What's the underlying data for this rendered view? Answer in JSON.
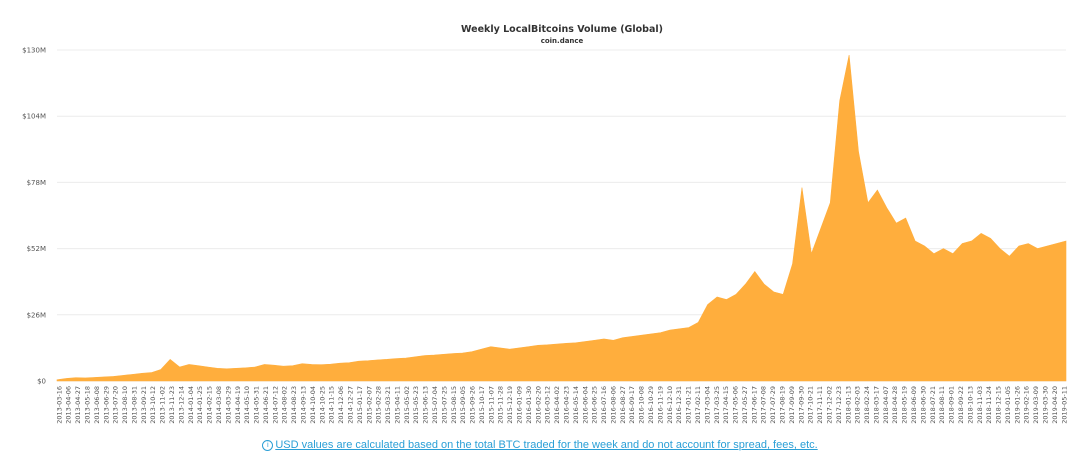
{
  "chart_data": {
    "type": "area",
    "title": "Weekly LocalBitcoins Volume (Global)",
    "subtitle": "coin.dance",
    "xlabel": "",
    "ylabel": "",
    "color": "#ffae3d",
    "ylim": [
      0,
      130000000
    ],
    "ytick_labels": [
      "$0",
      "$26M",
      "$52M",
      "$78M",
      "$104M",
      "$130M"
    ],
    "grid": true,
    "x_tick_labels": [
      "2013-03-16",
      "2013-04-06",
      "2013-04-27",
      "2013-05-18",
      "2013-06-08",
      "2013-06-29",
      "2013-07-20",
      "2013-08-10",
      "2013-08-31",
      "2013-09-21",
      "2013-10-12",
      "2013-11-02",
      "2013-11-23",
      "2013-12-14",
      "2014-01-04",
      "2014-01-25",
      "2014-02-15",
      "2014-03-08",
      "2014-03-29",
      "2014-04-19",
      "2014-05-10",
      "2014-05-31",
      "2014-06-21",
      "2014-07-12",
      "2014-08-02",
      "2014-08-23",
      "2014-09-13",
      "2014-10-04",
      "2014-10-25",
      "2014-11-15",
      "2014-12-06",
      "2014-12-27",
      "2015-01-17",
      "2015-02-07",
      "2015-02-28",
      "2015-03-21",
      "2015-04-11",
      "2015-05-02",
      "2015-05-23",
      "2015-06-13",
      "2015-07-04",
      "2015-07-25",
      "2015-08-15",
      "2015-09-05",
      "2015-09-26",
      "2015-10-17",
      "2015-11-07",
      "2015-11-28",
      "2015-12-19",
      "2016-01-09",
      "2016-01-30",
      "2016-02-20",
      "2016-03-12",
      "2016-04-02",
      "2016-04-23",
      "2016-05-14",
      "2016-06-04",
      "2016-06-25",
      "2016-07-16",
      "2016-08-06",
      "2016-08-27",
      "2016-09-17",
      "2016-10-08",
      "2016-10-29",
      "2016-11-19",
      "2016-12-10",
      "2016-12-31",
      "2017-01-21",
      "2017-02-11",
      "2017-03-04",
      "2017-03-25",
      "2017-04-15",
      "2017-05-06",
      "2017-05-27",
      "2017-06-17",
      "2017-07-08",
      "2017-07-29",
      "2017-08-19",
      "2017-09-09",
      "2017-09-30",
      "2017-10-21",
      "2017-11-11",
      "2017-12-02",
      "2017-12-23",
      "2018-01-13",
      "2018-02-03",
      "2018-02-24",
      "2018-03-17",
      "2018-04-07",
      "2018-04-28",
      "2018-05-19",
      "2018-06-09",
      "2018-06-30",
      "2018-07-21",
      "2018-08-11",
      "2018-09-01",
      "2018-09-22",
      "2018-10-13",
      "2018-11-03",
      "2018-11-24",
      "2018-12-15",
      "2019-01-05",
      "2019-01-26",
      "2019-02-16",
      "2019-03-09",
      "2019-03-30",
      "2019-04-20",
      "2019-05-11"
    ],
    "values_millions": [
      0.5,
      1.0,
      1.3,
      1.2,
      1.4,
      1.6,
      1.8,
      2.2,
      2.6,
      3.0,
      3.3,
      4.5,
      8.5,
      5.5,
      6.5,
      6.0,
      5.5,
      5.0,
      4.8,
      5.0,
      5.2,
      5.5,
      6.5,
      6.2,
      5.8,
      6.0,
      6.8,
      6.5,
      6.4,
      6.6,
      7.0,
      7.2,
      7.8,
      8.0,
      8.3,
      8.5,
      8.8,
      9.0,
      9.5,
      10.0,
      10.2,
      10.5,
      10.8,
      11.0,
      11.5,
      12.5,
      13.5,
      13.0,
      12.5,
      13.0,
      13.5,
      14.0,
      14.2,
      14.5,
      14.8,
      15.0,
      15.5,
      16.0,
      16.5,
      16.0,
      17.0,
      17.5,
      18.0,
      18.5,
      19.0,
      20.0,
      20.5,
      21.0,
      23.0,
      30.0,
      33.0,
      32.0,
      34.0,
      38.0,
      43.0,
      38.0,
      35.0,
      34.0,
      46.0,
      76.0,
      50.0,
      60.0,
      70.0,
      110.0,
      128.0,
      90.0,
      70.0,
      75.0,
      68.0,
      62.0,
      64.0,
      55.0,
      53.0,
      50.0,
      52.0,
      50.0,
      54.0,
      55.0,
      58.0,
      56.0,
      52.0,
      49.0,
      53.0,
      54.0,
      52.0,
      53.0,
      54.0,
      55.0
    ]
  },
  "footnote": {
    "icon": "info-icon",
    "text": "USD values are calculated based on the total BTC traded for the week and do not account for spread, fees, etc."
  }
}
